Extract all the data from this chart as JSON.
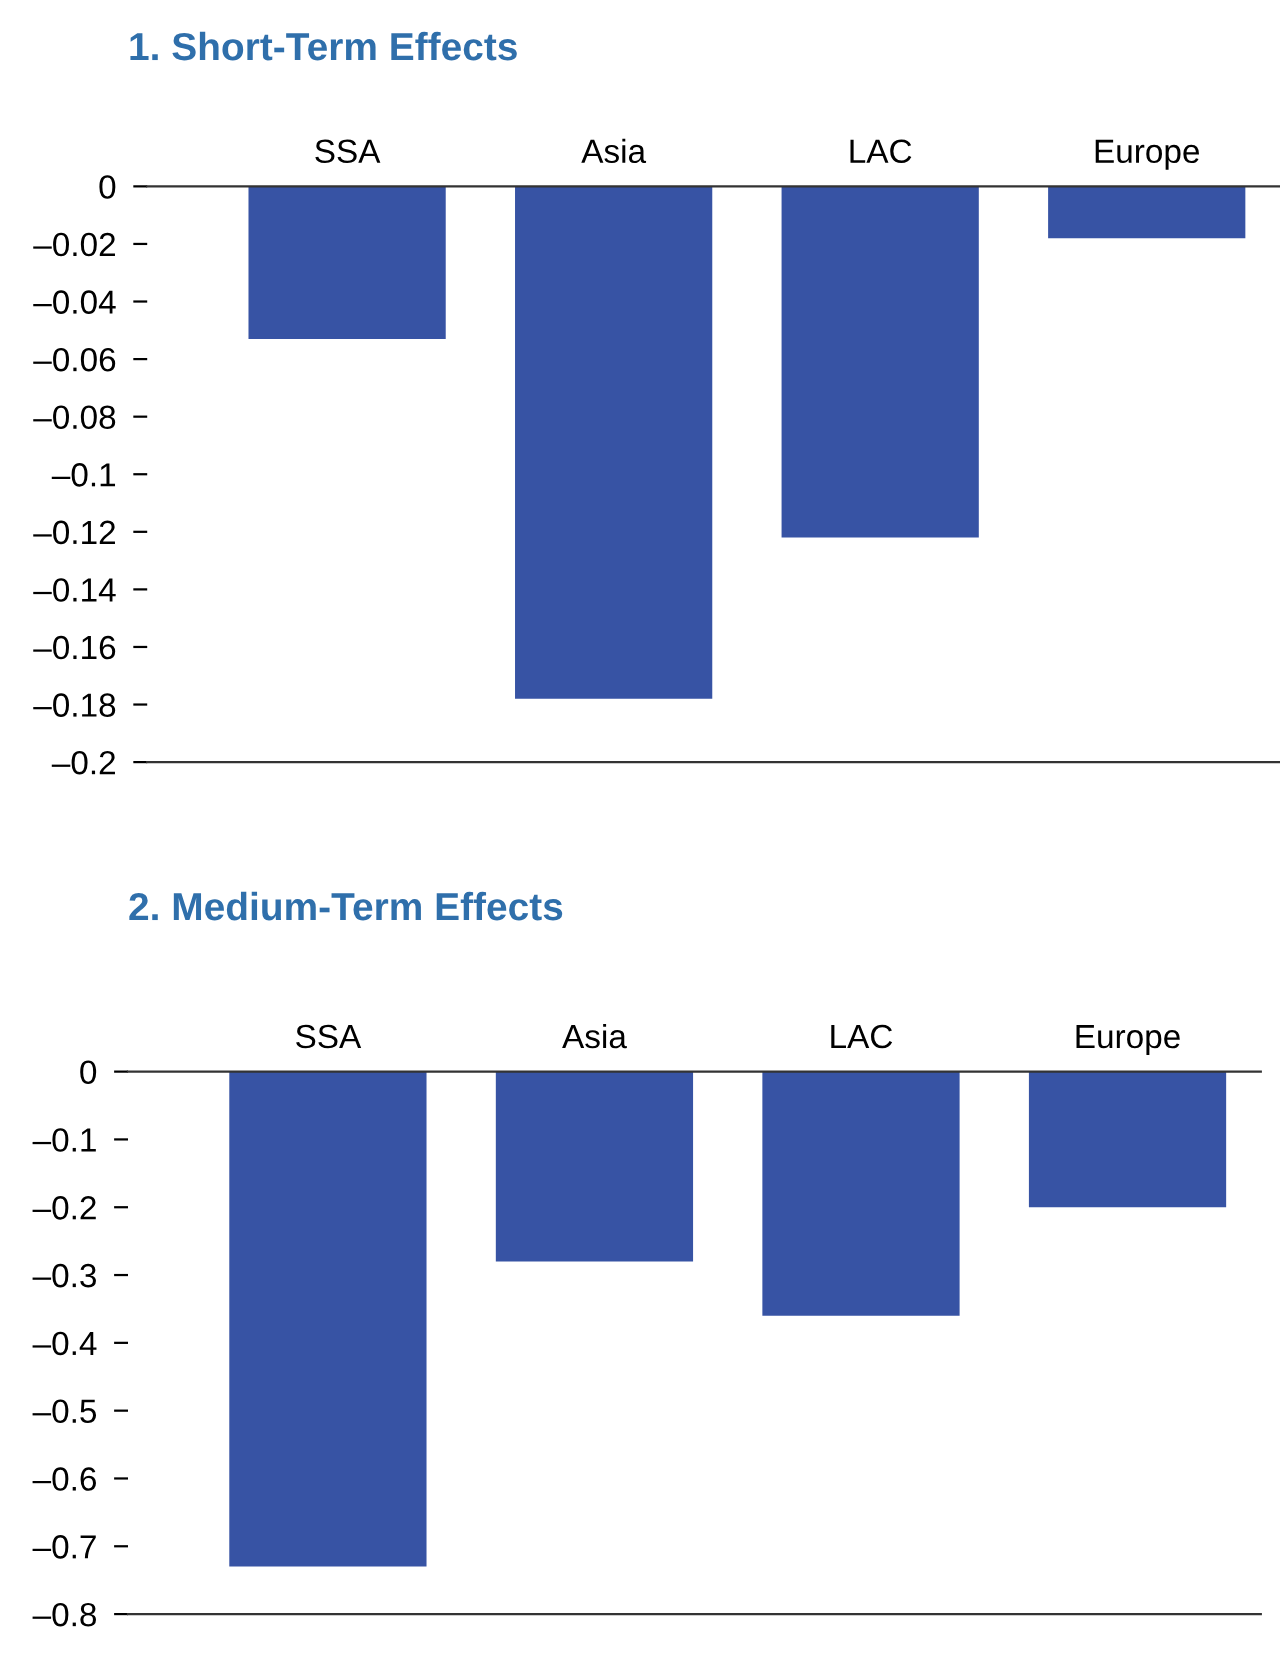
{
  "chart_data": [
    {
      "type": "bar",
      "title": "1. Short-Term Effects",
      "categories": [
        "SSA",
        "Asia",
        "LAC",
        "Europe"
      ],
      "values": [
        -0.053,
        -0.178,
        -0.122,
        -0.018
      ],
      "color": "#3753a4",
      "ylim": [
        -0.2,
        0
      ],
      "yticks": [
        0,
        {
          "value": -0.02,
          "label": "–0.02"
        },
        {
          "value": -0.04,
          "label": "–0.04"
        },
        {
          "value": -0.06,
          "label": "–0.06"
        },
        {
          "value": -0.08,
          "label": "–0.08"
        },
        {
          "value": -0.1,
          "label": "–0.1"
        },
        {
          "value": -0.12,
          "label": "–0.12"
        },
        {
          "value": -0.14,
          "label": "–0.14"
        },
        {
          "value": -0.16,
          "label": "–0.16"
        },
        {
          "value": -0.18,
          "label": "–0.18"
        },
        {
          "value": -0.2,
          "label": "–0.2"
        }
      ],
      "grid": false
    },
    {
      "type": "bar",
      "title": "2. Medium-Term Effects",
      "categories": [
        "SSA",
        "Asia",
        "LAC",
        "Europe"
      ],
      "values": [
        -0.73,
        -0.28,
        -0.36,
        -0.2
      ],
      "color": "#3753a4",
      "ylim": [
        -0.8,
        0
      ],
      "yticks": [
        0,
        {
          "value": -0.1,
          "label": "–0.1"
        },
        {
          "value": -0.2,
          "label": "–0.2"
        },
        {
          "value": -0.3,
          "label": "–0.3"
        },
        {
          "value": -0.4,
          "label": "–0.4"
        },
        {
          "value": -0.5,
          "label": "–0.5"
        },
        {
          "value": -0.6,
          "label": "–0.6"
        },
        {
          "value": -0.7,
          "label": "–0.7"
        },
        {
          "value": -0.8,
          "label": "–0.8"
        }
      ],
      "grid": false
    }
  ]
}
